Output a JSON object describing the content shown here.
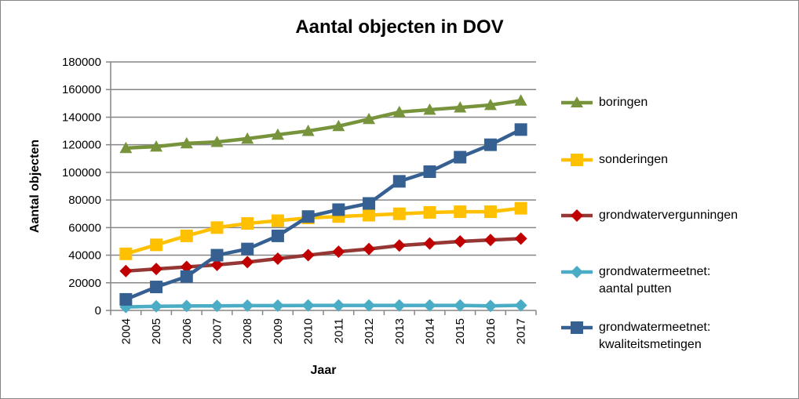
{
  "chart_data": {
    "type": "line",
    "title": "Aantal objecten in DOV",
    "xlabel": "Jaar",
    "ylabel": "Aantal objecten",
    "ylim": [
      0,
      180000
    ],
    "yticks": [
      "0",
      "20000",
      "40000",
      "60000",
      "80000",
      "100000",
      "120000",
      "140000",
      "160000",
      "180000"
    ],
    "grid": "horizontal",
    "legend": "right",
    "categories": [
      "2004",
      "2005",
      "2006",
      "2007",
      "2008",
      "2009",
      "2010",
      "2011",
      "2012",
      "2013",
      "2014",
      "2015",
      "2016",
      "2017"
    ],
    "series": [
      {
        "name": "boringen",
        "marker": "triangle",
        "color": "#77933C",
        "values": [
          117600,
          118700,
          121000,
          122000,
          124400,
          127300,
          130000,
          133500,
          138600,
          143700,
          145400,
          147000,
          148800,
          152000
        ]
      },
      {
        "name": "sonderingen",
        "marker": "square",
        "color": "#FFC000",
        "values": [
          41000,
          47500,
          54000,
          60000,
          63000,
          65000,
          67000,
          68000,
          69000,
          70000,
          71000,
          71500,
          71500,
          74000
        ]
      },
      {
        "name": "grondwatervergunningen",
        "marker": "diamond",
        "color": "#C00000",
        "line_color": "#953735",
        "values": [
          28500,
          30000,
          31500,
          33000,
          35000,
          37500,
          40000,
          42500,
          44500,
          47000,
          48500,
          50000,
          51000,
          52000
        ]
      },
      {
        "name": "grondwatermeetnet: aantal putten",
        "marker": "diamond",
        "color": "#4BACC6",
        "values": [
          2500,
          3000,
          3200,
          3300,
          3500,
          3500,
          3600,
          3600,
          3600,
          3600,
          3600,
          3600,
          3300,
          3700
        ]
      },
      {
        "name": "grondwatermeetnet: kwaliteitsmetingen",
        "marker": "square",
        "color": "#366092",
        "values": [
          8000,
          17000,
          24500,
          40000,
          44500,
          54000,
          68000,
          73000,
          77500,
          93500,
          100500,
          111000,
          120000,
          131000
        ]
      }
    ]
  }
}
